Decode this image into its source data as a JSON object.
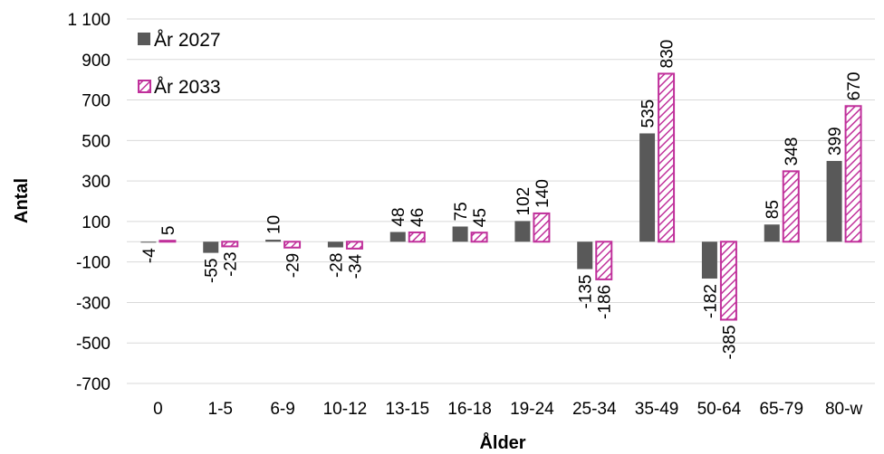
{
  "chart_data": {
    "type": "bar",
    "title": "",
    "xlabel": "Ålder",
    "ylabel": "Antal",
    "ylim": [
      -700,
      1100
    ],
    "yticks": [
      {
        "value": 1100,
        "label": "1 100"
      },
      {
        "value": 900,
        "label": "900"
      },
      {
        "value": 700,
        "label": "700"
      },
      {
        "value": 500,
        "label": "500"
      },
      {
        "value": 300,
        "label": "300"
      },
      {
        "value": 100,
        "label": "100"
      },
      {
        "value": -100,
        "label": "-100"
      },
      {
        "value": -300,
        "label": "-300"
      },
      {
        "value": -500,
        "label": "-500"
      },
      {
        "value": -700,
        "label": "-700"
      }
    ],
    "grid": true,
    "legend_position": "top-left",
    "categories": [
      "0",
      "1-5",
      "6-9",
      "10-12",
      "13-15",
      "16-18",
      "19-24",
      "25-34",
      "35-49",
      "50-64",
      "65-79",
      "80-w"
    ],
    "series": [
      {
        "name": "År 2027",
        "color": "#595959",
        "pattern": "solid",
        "values": [
          -4,
          -55,
          10,
          -28,
          48,
          75,
          102,
          -135,
          535,
          -182,
          85,
          399
        ]
      },
      {
        "name": "År 2033",
        "color": "#c0309b",
        "pattern": "hatched",
        "values": [
          5,
          -23,
          -29,
          -34,
          46,
          45,
          140,
          -186,
          830,
          -385,
          348,
          670
        ]
      }
    ]
  }
}
